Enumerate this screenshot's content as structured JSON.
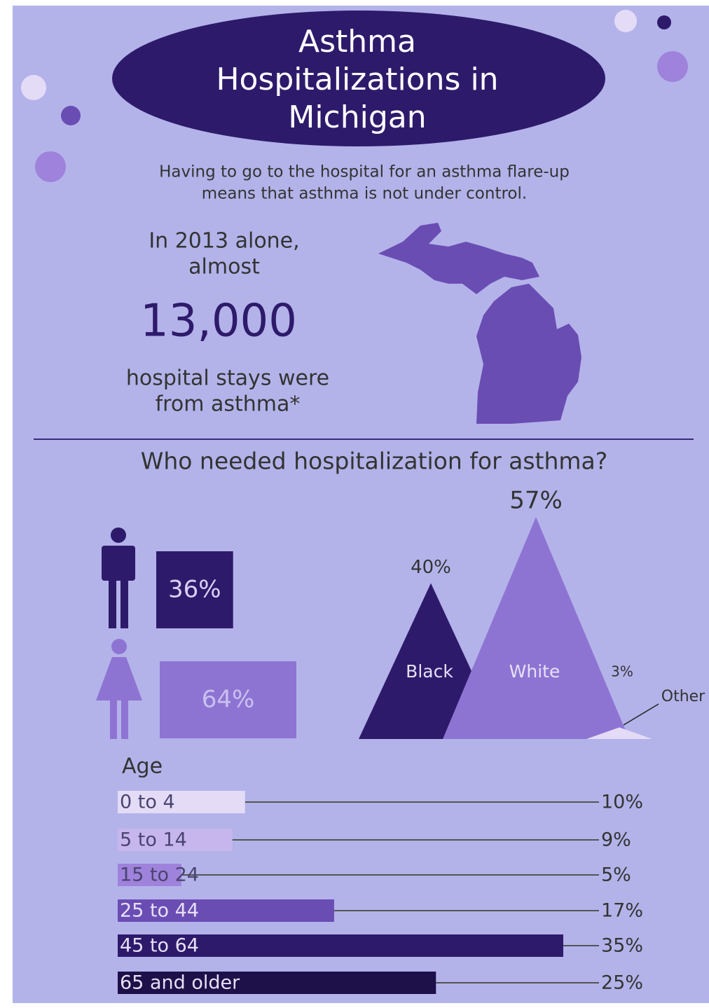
{
  "header": {
    "title": [
      "Asthma",
      "Hospitalizations in",
      "Michigan"
    ],
    "subtitle": [
      "Having to go to the hospital for an asthma flare-up",
      "means that asthma is not under control."
    ]
  },
  "stat": {
    "intro": [
      "In 2013 alone,",
      "almost"
    ],
    "number": "13,000",
    "outro": [
      "hospital stays were",
      "from asthma*"
    ]
  },
  "section": {
    "title": "Who needed hospitalization for asthma?"
  },
  "chart_data": [
    {
      "type": "bar",
      "values": [
        36,
        64
      ],
      "value_labels": [
        "36%",
        "64%"
      ],
      "colors": [
        "#2e1a6b",
        "#8e74d2"
      ]
    },
    {
      "type": "triangle",
      "categories": [
        "Black",
        "White",
        "Other"
      ],
      "values": [
        40,
        57,
        3
      ],
      "value_labels": [
        "40%",
        "57%",
        "3%"
      ],
      "colors": [
        "#2e1a6b",
        "#8e74d2",
        "#e4dcf7"
      ]
    },
    {
      "type": "bar",
      "title": "Age",
      "categories": [
        "0 to 4",
        "5 to 14",
        "15 to 24",
        "25 to 44",
        "45 to 64",
        "65 and older"
      ],
      "values": [
        10,
        9,
        5,
        17,
        35,
        25
      ],
      "value_labels": [
        "10%",
        "9%",
        "5%",
        "17%",
        "35%",
        "25%"
      ],
      "colors": [
        "#e4dcf7",
        "#c7b6ee",
        "#9e82db",
        "#6a4db3",
        "#2e1a6b",
        "#1e1048"
      ]
    }
  ]
}
